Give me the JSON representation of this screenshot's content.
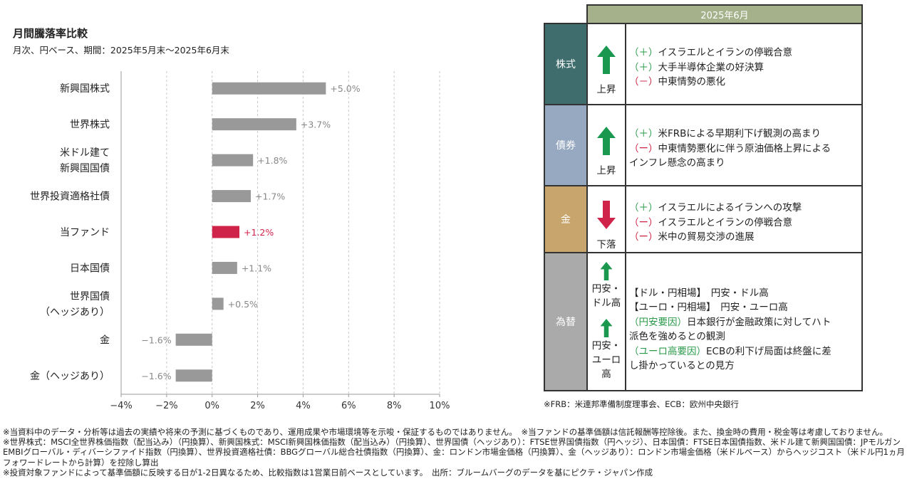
{
  "title": "月間騰落率比較",
  "subtitle": "月次、円ベース、期間：2025年5月末～2025年6月末",
  "chart_data": {
    "type": "bar",
    "orientation": "horizontal",
    "categories": [
      [
        "新興国株式"
      ],
      [
        "世界株式"
      ],
      [
        "米ドル建て",
        "新興国国債"
      ],
      [
        "世界投資適格社債"
      ],
      [
        "当ファンド"
      ],
      [
        "日本国債"
      ],
      [
        "世界国債",
        "（ヘッジあり）"
      ],
      [
        "金"
      ],
      [
        "金（ヘッジあり）"
      ]
    ],
    "values": [
      5.0,
      3.7,
      1.8,
      1.7,
      1.2,
      1.1,
      0.5,
      -1.6,
      -1.6
    ],
    "value_labels": [
      "+5.0%",
      "+3.7%",
      "+1.8%",
      "+1.7%",
      "+1.2%",
      "+1.1%",
      "+0.5%",
      "−1.6%",
      "−1.6%"
    ],
    "highlight_index": 4,
    "xlim": [
      -4,
      10
    ],
    "xticks": [
      -4,
      -2,
      0,
      2,
      4,
      6,
      8,
      10
    ],
    "xtick_labels": [
      "−4%",
      "−2%",
      "0%",
      "2%",
      "4%",
      "6%",
      "8%",
      "10%"
    ],
    "grid": "vertical dashed",
    "colors": {
      "bar": "#999999",
      "highlight": "#d0234a",
      "label": "#888888"
    }
  },
  "table": {
    "header": "2025年6月",
    "rows": [
      {
        "category": "株式",
        "bg": "#3f6d6d",
        "directions": [
          {
            "arrow": "up",
            "label": "上昇"
          }
        ],
        "lines": [
          {
            "tag": "（＋）",
            "tag_color": "plus",
            "text": "イスラエルとイランの停戦合意"
          },
          {
            "tag": "（＋）",
            "tag_color": "plus",
            "text": "大手半導体企業の好決算"
          },
          {
            "tag": "（－）",
            "tag_color": "minus",
            "text": "中東情勢の悪化"
          }
        ]
      },
      {
        "category": "債券",
        "bg": "#96a9c0",
        "directions": [
          {
            "arrow": "up",
            "label": "上昇"
          }
        ],
        "lines": [
          {
            "tag": "（＋）",
            "tag_color": "plus",
            "text": "米FRBによる早期利下げ観測の高まり"
          },
          {
            "tag": "（ー）",
            "tag_color": "minus",
            "text": "中東情勢悪化に伴う原油価格上昇による"
          },
          {
            "tag": "",
            "tag_color": "",
            "text": "インフレ懸念の高まり"
          }
        ]
      },
      {
        "category": "金",
        "bg": "#c7a56c",
        "directions": [
          {
            "arrow": "down",
            "label": "下落"
          }
        ],
        "lines": [
          {
            "tag": "（＋）",
            "tag_color": "plus",
            "text": "イスラエルによるイランへの攻撃"
          },
          {
            "tag": "（ー）",
            "tag_color": "minus",
            "text": "イスラエルとイランの停戦合意"
          },
          {
            "tag": "（ー）",
            "tag_color": "minus",
            "text": "米中の貿易交渉の進展"
          }
        ]
      },
      {
        "category": "為替",
        "bg": "#aaaaaa",
        "directions": [
          {
            "arrow": "up",
            "label": "円安・ドル高"
          },
          {
            "arrow": "up",
            "label": "円安・ユーロ高"
          }
        ],
        "lines": [
          {
            "tag": "",
            "tag_color": "",
            "text": "【ドル・円相場】　円安・ドル高"
          },
          {
            "tag": "",
            "tag_color": "",
            "text": "【ユーロ・円相場】　円安・ユーロ高"
          },
          {
            "tag": "（円安要因）",
            "tag_color": "plus",
            "text": "日本銀行が金融政策に対してハト"
          },
          {
            "tag": "",
            "tag_color": "",
            "text": "派色を強めるとの観測"
          },
          {
            "tag": "（ユーロ高要因）",
            "tag_color": "plus",
            "text": "ECBの利下げ局面は終盤に差"
          },
          {
            "tag": "",
            "tag_color": "",
            "text": "し掛かっているとの見方"
          }
        ]
      }
    ],
    "arrow_colors": {
      "up": "#1a9850",
      "down": "#d0234a"
    }
  },
  "table_note": "※FRB：米連邦準備制度理事会、ECB：欧州中央銀行",
  "footer": [
    "※当資料中のデータ・分析等は過去の実績や将来の予測に基づくものであり、運用成果や市場環境等を示唆・保証するものではありません。　※当ファンドの基準価額は信託報酬等控除後。また、換金時の費用・税金等は考慮しておりません。",
    "※世界株式：MSCI全世界株価指数（配当込み）（円換算）、新興国株式：MSCI新興国株価指数（配当込み）（円換算）、世界国債（ヘッジあり）：FTSE世界国債指数（円ヘッジ）、日本国債：FTSE日本国債指数、米ドル建て新興国国債：JPモルガンEMBIグローバル・ディバーシファイド指数（円換算）、世界投資適格社債：BBGグローバル総合社債指数（円換算）、金：ロンドン市場金価格（円換算）、金（ヘッジあり）：ロンドン市場金価格（米ドルベース）からヘッジコスト（米ドル円1ヵ月フォワードレートから計算）を控除し算出",
    "※投資対象ファンドによって基準価額に反映する日が1-2日異なるため、比較指数は1営業日前ベースとしています。　出所：ブルームバーグのデータを基にピクテ・ジャパン作成"
  ]
}
